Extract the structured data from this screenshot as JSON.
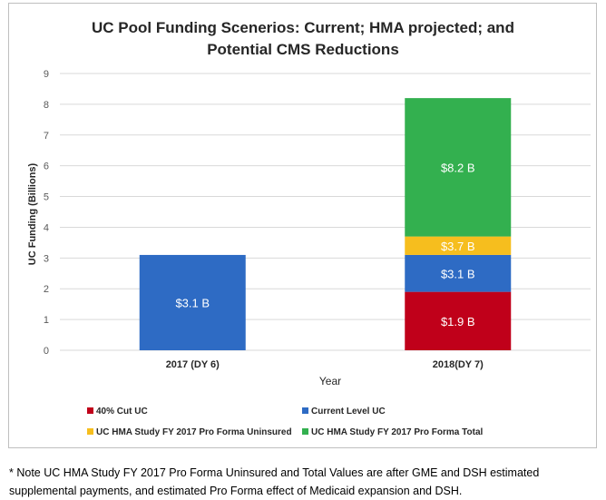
{
  "chart_data": {
    "type": "bar",
    "stacked": true,
    "title_lines": [
      "UC Pool Funding Scenerios: Current; HMA projected; and",
      "Potential CMS Reductions"
    ],
    "xlabel": "Year",
    "ylabel": "UC Funding (Billions)",
    "ylim": [
      0,
      9
    ],
    "yticks": [
      0,
      1,
      2,
      3,
      4,
      5,
      6,
      7,
      8,
      9
    ],
    "grid": true,
    "categories": [
      "2017 (DY 6)",
      "2018(DY 7)"
    ],
    "series": [
      {
        "name": "40% Cut UC",
        "color": "#c0001a",
        "values": [
          0,
          1.9
        ],
        "labels": [
          "",
          "$1.9 B"
        ]
      },
      {
        "name": "Current Level UC",
        "color": "#2e6bc4",
        "values": [
          3.1,
          1.2
        ],
        "labels": [
          "$3.1 B",
          "$3.1 B"
        ]
      },
      {
        "name": "UC HMA Study FY 2017 Pro Forma Uninsured",
        "color": "#f6be1e",
        "values": [
          0,
          0.6
        ],
        "labels": [
          "",
          "$3.7 B"
        ]
      },
      {
        "name": "UC HMA Study FY 2017 Pro Forma Total",
        "color": "#33b04f",
        "values": [
          0,
          4.5
        ],
        "labels": [
          "",
          "$8.2 B"
        ]
      }
    ],
    "legend_position": "bottom"
  },
  "footnote": "* Note UC HMA Study FY 2017 Pro Forma Uninsured and Total Values are after GME and DSH estimated supplemental payments, and estimated Pro Forma effect of Medicaid expansion and DSH."
}
